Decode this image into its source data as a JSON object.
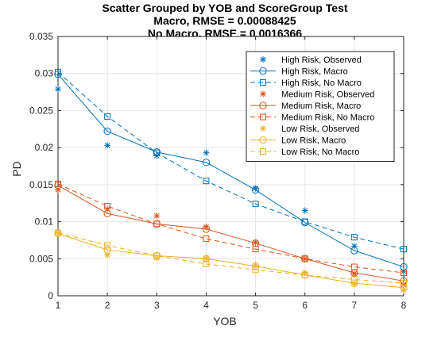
{
  "chart_data": {
    "type": "scatter",
    "title": [
      "Scatter Grouped by YOB and ScoreGroup Test",
      "Macro, RMSE = 0.00088425",
      "No Macro, RMSE = 0.0016366"
    ],
    "xlabel": "YOB",
    "ylabel": "PD",
    "xlim": [
      1,
      8
    ],
    "ylim": [
      0,
      0.035
    ],
    "x_ticks": [
      "1",
      "2",
      "3",
      "4",
      "5",
      "6",
      "7",
      "8"
    ],
    "y_ticks": [
      "0",
      "0.005",
      "0.01",
      "0.015",
      "0.02",
      "0.025",
      "0.03",
      "0.035"
    ],
    "grid": true,
    "legend_position": "top-right",
    "x": [
      1,
      2,
      3,
      4,
      5,
      6,
      7,
      8
    ],
    "series": [
      {
        "name": "High Risk, Observed",
        "style": "observed",
        "color": "#0072BD",
        "values": [
          0.0279,
          0.0203,
          0.0189,
          0.0193,
          0.0145,
          0.0115,
          0.0067,
          0.0033
        ]
      },
      {
        "name": "High Risk, Macro",
        "style": "macro",
        "color": "#0072BD",
        "values": [
          0.0299,
          0.0222,
          0.0194,
          0.018,
          0.0143,
          0.0099,
          0.0061,
          0.0039
        ]
      },
      {
        "name": "High Risk, No Macro",
        "style": "nomacro",
        "color": "#0072BD",
        "values": [
          0.0302,
          0.0242,
          0.0193,
          0.0155,
          0.0124,
          0.01,
          0.0079,
          0.0063
        ]
      },
      {
        "name": "Medium Risk, Observed",
        "style": "observed",
        "color": "#D95319",
        "values": [
          0.0143,
          0.0117,
          0.0108,
          0.0093,
          0.0072,
          0.005,
          0.003,
          0.0015
        ]
      },
      {
        "name": "Medium Risk, Macro",
        "style": "macro",
        "color": "#D95319",
        "values": [
          0.0149,
          0.0111,
          0.0097,
          0.009,
          0.0071,
          0.005,
          0.0031,
          0.002
        ]
      },
      {
        "name": "Medium Risk, No Macro",
        "style": "nomacro",
        "color": "#D95319",
        "values": [
          0.0151,
          0.0121,
          0.0097,
          0.0077,
          0.0063,
          0.005,
          0.0039,
          0.0031
        ]
      },
      {
        "name": "Low Risk, Observed",
        "style": "observed",
        "color": "#EDB120",
        "values": [
          0.0085,
          0.0055,
          0.0051,
          0.0051,
          0.0041,
          0.0031,
          0.0016,
          0.0008
        ]
      },
      {
        "name": "Low Risk, Macro",
        "style": "macro",
        "color": "#EDB120",
        "values": [
          0.0084,
          0.0062,
          0.0054,
          0.005,
          0.004,
          0.0028,
          0.0017,
          0.0011
        ]
      },
      {
        "name": "Low Risk, No Macro",
        "style": "nomacro",
        "color": "#EDB120",
        "values": [
          0.0085,
          0.0068,
          0.0054,
          0.0043,
          0.0035,
          0.0028,
          0.0022,
          0.0017
        ]
      }
    ]
  }
}
